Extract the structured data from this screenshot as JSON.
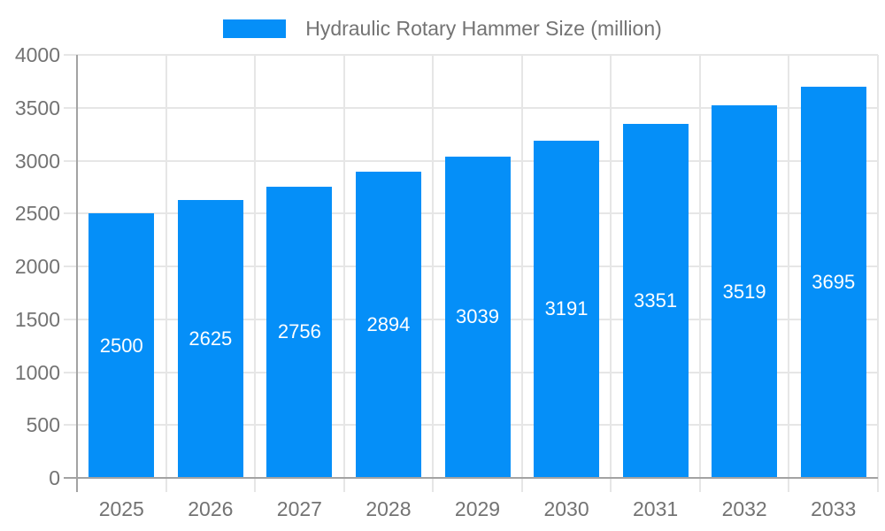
{
  "legend": {
    "label": "Hydraulic Rotary Hammer Size (million)"
  },
  "colors": {
    "bar": "#058FF8",
    "grid": "#E6E6E6",
    "axis": "#A3A3A3",
    "text": "#737373",
    "value_label": "#FFFFFF",
    "background": "#FFFFFF"
  },
  "chart_data": {
    "type": "bar",
    "title": "Hydraulic Rotary Hammer Size (million)",
    "series_name": "Hydraulic Rotary Hammer Size (million)",
    "categories": [
      "2025",
      "2026",
      "2027",
      "2028",
      "2029",
      "2030",
      "2031",
      "2032",
      "2033"
    ],
    "values": [
      2500,
      2625,
      2756,
      2894,
      3039,
      3191,
      3351,
      3519,
      3695
    ],
    "value_labels_position": "inside-center",
    "xlabel": "",
    "ylabel": "",
    "ylim": [
      0,
      4000
    ],
    "ytick_step": 500,
    "yticks": [
      0,
      500,
      1000,
      1500,
      2000,
      2500,
      3000,
      3500,
      4000
    ],
    "grid": true,
    "legend_position": "top-center"
  }
}
